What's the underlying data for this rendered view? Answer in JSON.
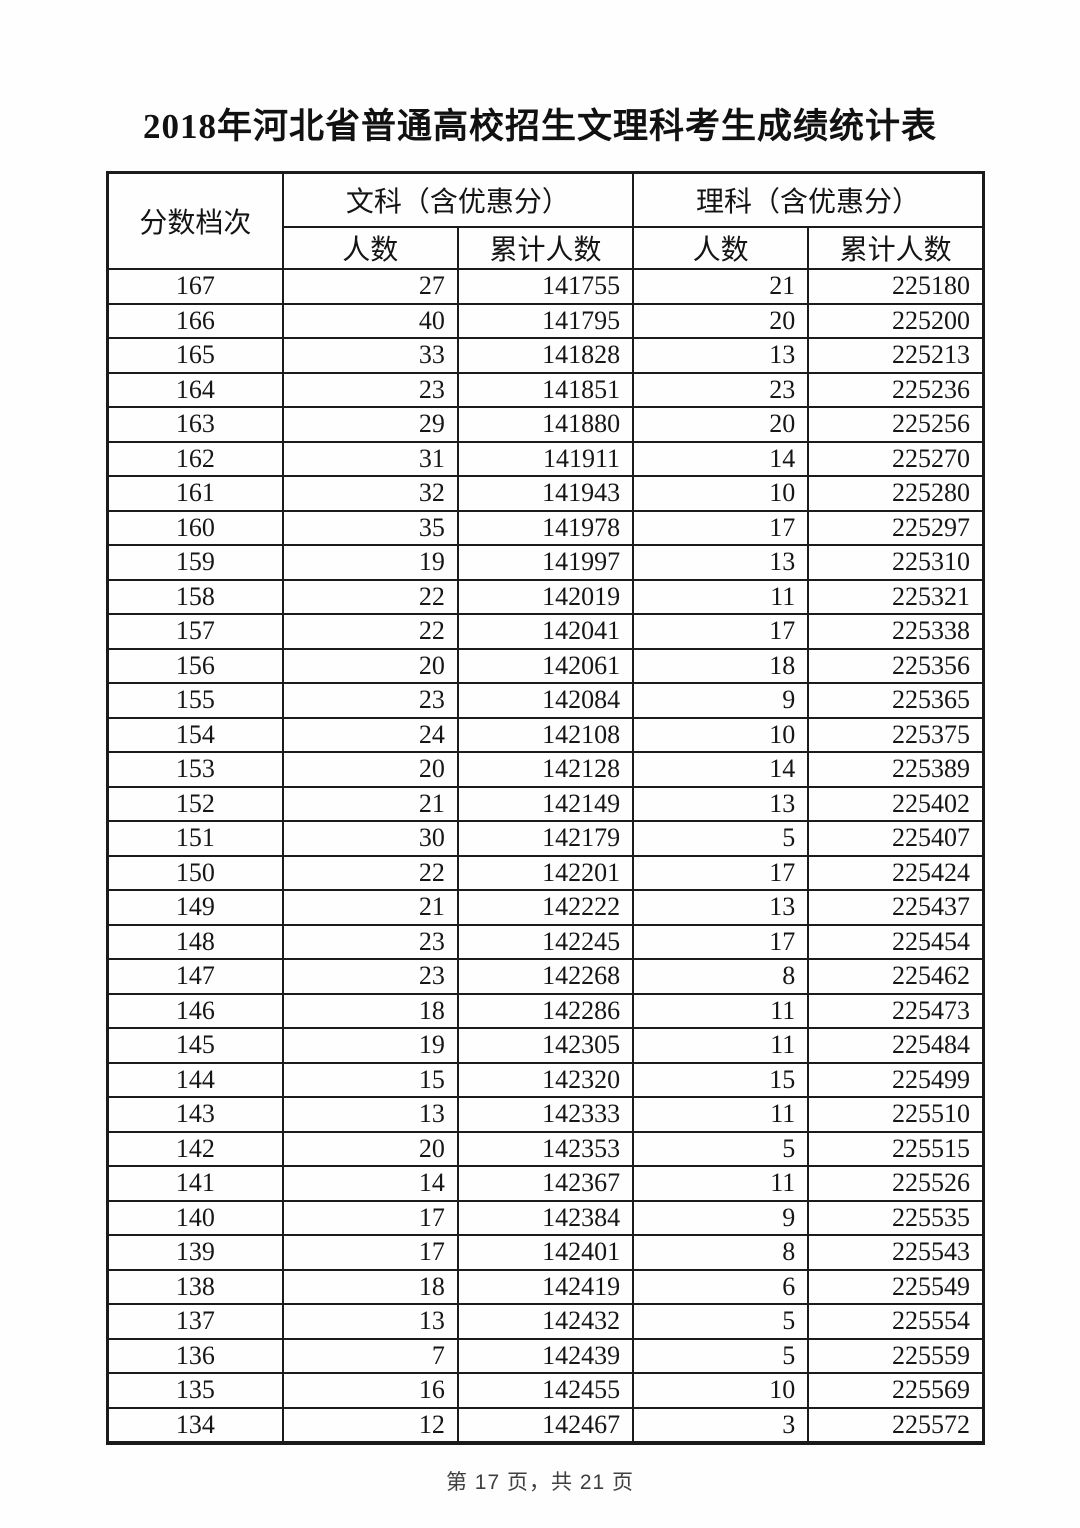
{
  "page": {
    "title": "2018年河北省普通高校招生文理科考生成绩统计表",
    "footer": "第 17 页，共 21 页"
  },
  "table": {
    "score_band_header": "分数档次",
    "group_headers": [
      {
        "label": "文科（含优惠分）"
      },
      {
        "label": "理科（含优惠分）"
      }
    ],
    "sub_headers": [
      "人数",
      "累计人数",
      "人数",
      "累计人数"
    ],
    "columns": [
      "score_band",
      "liberal_count",
      "liberal_cumulative",
      "science_count",
      "science_cumulative"
    ],
    "rows": [
      [
        167,
        27,
        141755,
        21,
        225180
      ],
      [
        166,
        40,
        141795,
        20,
        225200
      ],
      [
        165,
        33,
        141828,
        13,
        225213
      ],
      [
        164,
        23,
        141851,
        23,
        225236
      ],
      [
        163,
        29,
        141880,
        20,
        225256
      ],
      [
        162,
        31,
        141911,
        14,
        225270
      ],
      [
        161,
        32,
        141943,
        10,
        225280
      ],
      [
        160,
        35,
        141978,
        17,
        225297
      ],
      [
        159,
        19,
        141997,
        13,
        225310
      ],
      [
        158,
        22,
        142019,
        11,
        225321
      ],
      [
        157,
        22,
        142041,
        17,
        225338
      ],
      [
        156,
        20,
        142061,
        18,
        225356
      ],
      [
        155,
        23,
        142084,
        9,
        225365
      ],
      [
        154,
        24,
        142108,
        10,
        225375
      ],
      [
        153,
        20,
        142128,
        14,
        225389
      ],
      [
        152,
        21,
        142149,
        13,
        225402
      ],
      [
        151,
        30,
        142179,
        5,
        225407
      ],
      [
        150,
        22,
        142201,
        17,
        225424
      ],
      [
        149,
        21,
        142222,
        13,
        225437
      ],
      [
        148,
        23,
        142245,
        17,
        225454
      ],
      [
        147,
        23,
        142268,
        8,
        225462
      ],
      [
        146,
        18,
        142286,
        11,
        225473
      ],
      [
        145,
        19,
        142305,
        11,
        225484
      ],
      [
        144,
        15,
        142320,
        15,
        225499
      ],
      [
        143,
        13,
        142333,
        11,
        225510
      ],
      [
        142,
        20,
        142353,
        5,
        225515
      ],
      [
        141,
        14,
        142367,
        11,
        225526
      ],
      [
        140,
        17,
        142384,
        9,
        225535
      ],
      [
        139,
        17,
        142401,
        8,
        225543
      ],
      [
        138,
        18,
        142419,
        6,
        225549
      ],
      [
        137,
        13,
        142432,
        5,
        225554
      ],
      [
        136,
        7,
        142439,
        5,
        225559
      ],
      [
        135,
        16,
        142455,
        10,
        225569
      ],
      [
        134,
        12,
        142467,
        3,
        225572
      ]
    ]
  },
  "colors": {
    "border": "#1b1b1b",
    "text": "#161616",
    "footer_text": "#3f3f3f",
    "background": "#fefefe"
  }
}
